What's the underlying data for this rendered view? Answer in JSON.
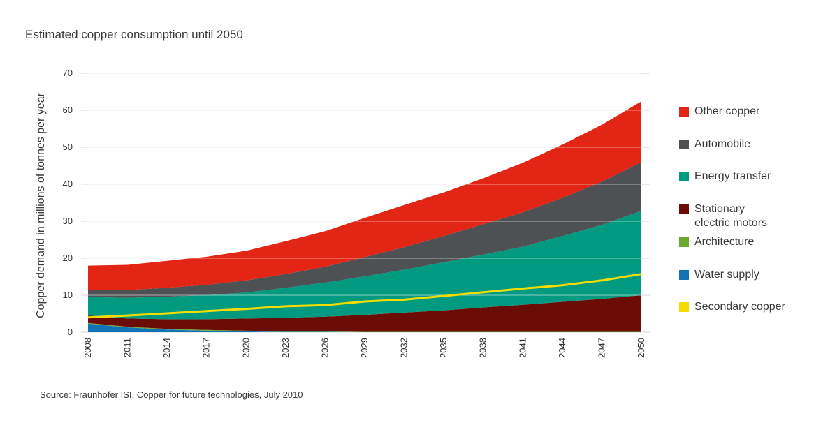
{
  "chart_data": {
    "type": "area",
    "title": "Estimated copper consumption until 2050",
    "ylabel": "Copper demand in millions of tonnes per year",
    "xlabel": "",
    "ylim": [
      0,
      70
    ],
    "yticks": [
      0,
      10,
      20,
      30,
      40,
      50,
      60,
      70
    ],
    "xticks": [
      2008,
      2011,
      2014,
      2017,
      2020,
      2023,
      2026,
      2029,
      2032,
      2035,
      2038,
      2041,
      2044,
      2047,
      2050
    ],
    "stacked": true,
    "grid": true,
    "legend_position": "right",
    "x": [
      2008,
      2011,
      2014,
      2017,
      2020,
      2023,
      2026,
      2029,
      2032,
      2035,
      2038,
      2041,
      2044,
      2047,
      2050
    ],
    "series": [
      {
        "name": "Water supply",
        "color": "#1273b5",
        "values": [
          2.3,
          1.3,
          0.7,
          0.4,
          0.2,
          0.1,
          0.1,
          0,
          0,
          0,
          0,
          0,
          0,
          0,
          0
        ]
      },
      {
        "name": "Architecture",
        "color": "#6aa832",
        "values": [
          0.2,
          0.2,
          0.2,
          0.2,
          0.2,
          0.2,
          0.1,
          0.1,
          0.1,
          0.1,
          0.1,
          0.1,
          0.1,
          0.1,
          0.1
        ]
      },
      {
        "name": "Stationary\nelectric motors",
        "color": "#6b0c06",
        "values": [
          2.0,
          2.2,
          2.6,
          2.9,
          3.3,
          3.6,
          4.0,
          4.6,
          5.2,
          5.8,
          6.6,
          7.3,
          8.1,
          8.9,
          9.9
        ]
      },
      {
        "name": "Energy transfer",
        "color": "#009a80",
        "values": [
          5.0,
          5.6,
          6.1,
          6.5,
          7.0,
          8.1,
          9.2,
          10.4,
          11.6,
          13.0,
          14.3,
          15.7,
          17.8,
          20.0,
          22.8
        ]
      },
      {
        "name": "Automobile",
        "color": "#4e5154",
        "values": [
          2.0,
          2.1,
          2.4,
          2.8,
          3.3,
          3.7,
          4.3,
          5.2,
          6.1,
          7.1,
          8.2,
          9.3,
          10.3,
          11.7,
          13.2
        ]
      },
      {
        "name": "Other copper",
        "color": "#e22514",
        "values": [
          6.5,
          6.8,
          7.3,
          7.6,
          8.0,
          8.9,
          9.6,
          10.6,
          11.4,
          11.8,
          12.4,
          13.4,
          14.4,
          15.4,
          16.4
        ]
      }
    ],
    "line_series": [
      {
        "name": "Secondary copper",
        "color": "#f5dc00",
        "values": [
          4.0,
          4.5,
          5.1,
          5.7,
          6.3,
          7.0,
          7.3,
          8.3,
          8.8,
          9.8,
          10.8,
          11.8,
          12.7,
          14.0,
          15.7
        ]
      }
    ],
    "legend": [
      {
        "name": "Other copper",
        "color": "#e22514"
      },
      {
        "name": "Automobile",
        "color": "#4e5154"
      },
      {
        "name": "Energy transfer",
        "color": "#009a80"
      },
      {
        "name": "Stationary\nelectric motors",
        "color": "#6b0c06"
      },
      {
        "name": "Architecture",
        "color": "#6aa832"
      },
      {
        "name": "Water supply",
        "color": "#1273b5"
      },
      {
        "name": "Secondary copper",
        "color": "#f5dc00"
      }
    ]
  },
  "source": "Source: Fraunhofer ISI, Copper for future technologies, July 2010"
}
